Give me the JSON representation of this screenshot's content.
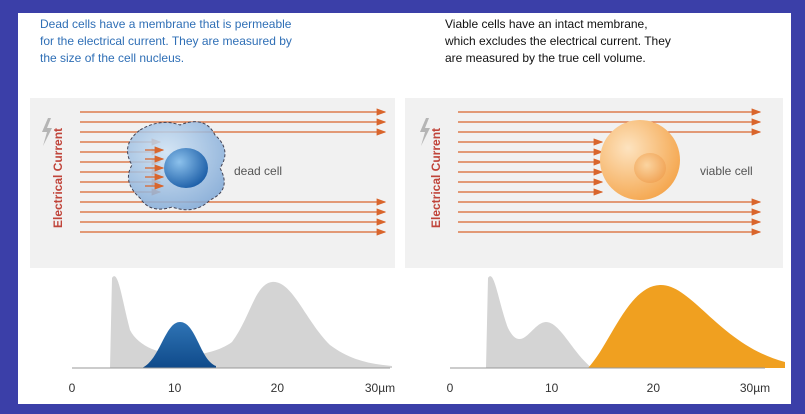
{
  "panels": [
    {
      "caption": [
        "Dead cells have a membrane that is permeable",
        "for the electrical current. They are measured by",
        "the size of the cell nucleus."
      ],
      "axis_label": "Electrical Current",
      "cell_label": "dead cell",
      "x_ticks": [
        "0",
        "10",
        "20",
        "30µm"
      ]
    },
    {
      "caption": [
        "Viable cells have an intact membrane,",
        "which excludes the electrical current. They",
        "are measured by the true cell volume."
      ],
      "axis_label": "Electrical Current",
      "cell_label": "viable cell",
      "x_ticks": [
        "0",
        "10",
        "20",
        "30µm"
      ]
    }
  ]
}
